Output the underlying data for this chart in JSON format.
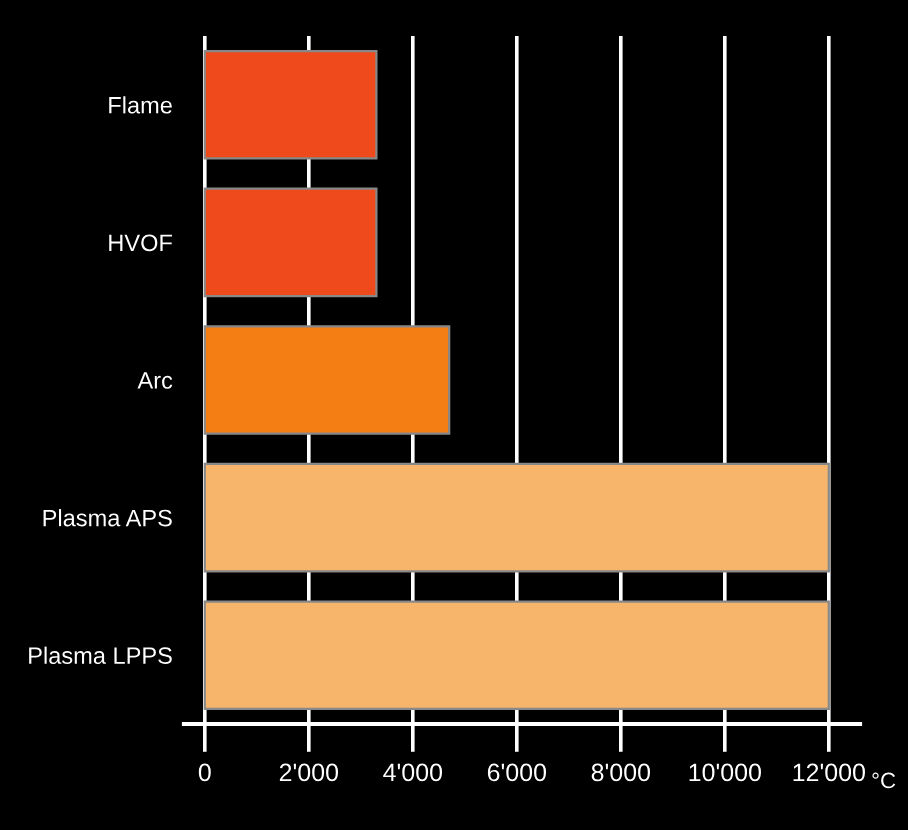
{
  "chart_data": {
    "type": "bar",
    "orientation": "horizontal",
    "categories": [
      "Flame",
      "HVOF",
      "Arc",
      "Plasma APS",
      "Plasma LPPS"
    ],
    "values": [
      3300,
      3300,
      4700,
      12000,
      12000
    ],
    "colors": [
      "#ee4a1c",
      "#ee4a1c",
      "#f47d14",
      "#f6b56a",
      "#f6b56a"
    ],
    "xlim": [
      -400,
      12600
    ],
    "xticks": [
      0,
      {
        "value": 2000,
        "label": "2'000"
      },
      {
        "value": 4000,
        "label": "4'000"
      },
      {
        "value": 6000,
        "label": "6'000"
      },
      {
        "value": 8000,
        "label": "8'000"
      },
      {
        "value": 10000,
        "label": "10'000"
      },
      {
        "value": 12000,
        "label": "12'000"
      }
    ],
    "xlabel": "°C",
    "grid": "x",
    "legend": false
  }
}
